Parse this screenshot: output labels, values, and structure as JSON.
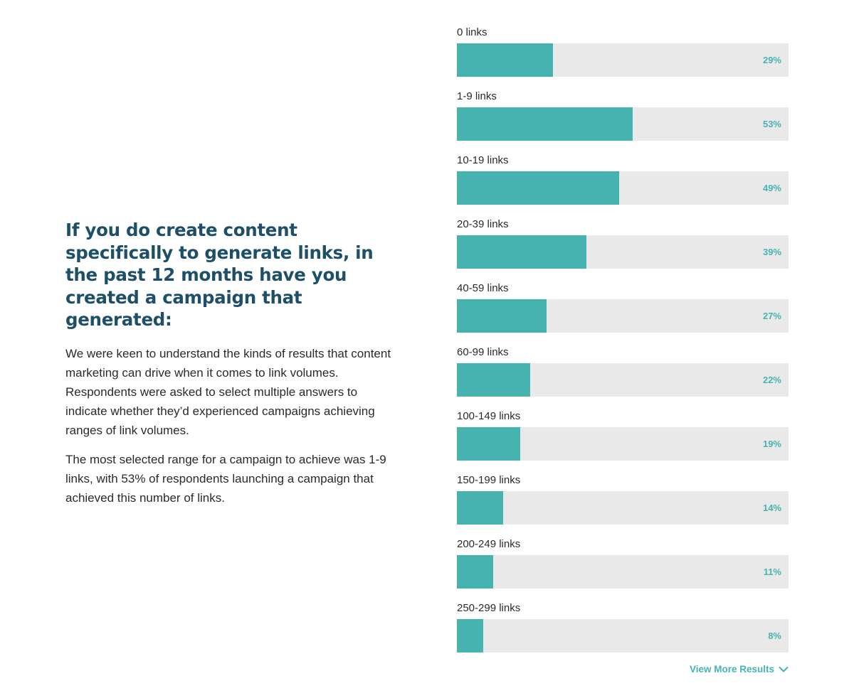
{
  "text": {
    "heading": "If you do create content specifically to generate links, in the past 12 months have you created a campaign that generated:",
    "paragraph1": "We were keen to understand the kinds of results that content marketing can drive when it comes to link volumes. Respondents were asked to select multiple answers to indicate whether they’d experienced campaigns achieving ranges of link volumes.",
    "paragraph2": "The most selected range for a campaign to achieve was 1-9 links, with 53% of respondents launching a campaign that achieved this number of links.",
    "view_more": "View More Results"
  },
  "colors": {
    "bar_fill": "#47b3b1",
    "bar_track": "#e9e9e9",
    "heading": "#1d5068",
    "accent": "#47b3b1"
  },
  "icons": {
    "view_more": "chevron-down-icon"
  },
  "chart_data": {
    "type": "bar",
    "orientation": "horizontal",
    "categories": [
      "0 links",
      "1-9 links",
      "10-19 links",
      "20-39 links",
      "40-59 links",
      "60-99 links",
      "100-149 links",
      "150-199 links",
      "200-249 links",
      "250-299 links"
    ],
    "values": [
      29,
      53,
      49,
      39,
      27,
      22,
      19,
      14,
      11,
      8
    ],
    "value_labels": [
      "29%",
      "53%",
      "49%",
      "39%",
      "27%",
      "22%",
      "19%",
      "14%",
      "11%",
      "8%"
    ],
    "xlim": [
      0,
      100
    ],
    "unit": "%",
    "title": "",
    "xlabel": "",
    "ylabel": ""
  }
}
